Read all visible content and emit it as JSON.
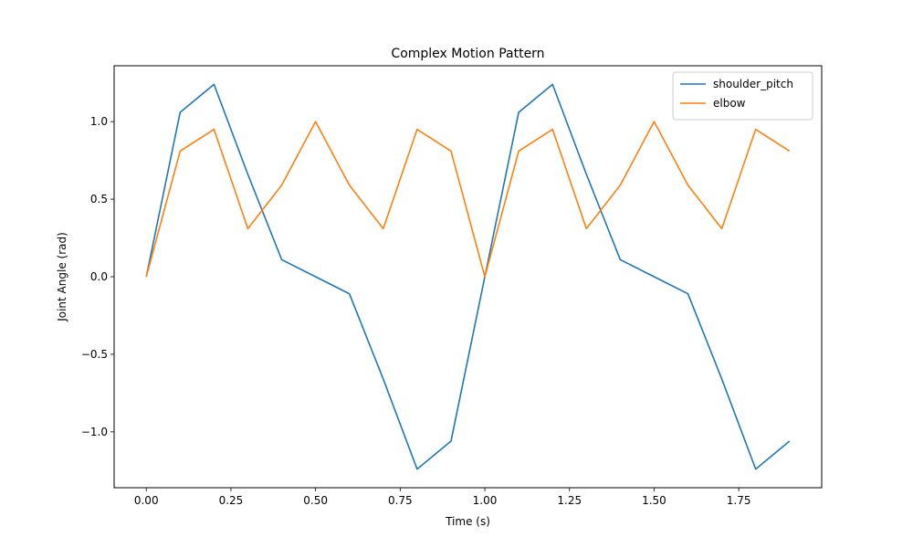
{
  "chart_data": {
    "type": "line",
    "title": "Complex Motion Pattern",
    "xlabel": "Time (s)",
    "ylabel": "Joint Angle (rad)",
    "xlim": [
      -0.095,
      1.995
    ],
    "ylim": [
      -1.36,
      1.36
    ],
    "xticks": [
      0.0,
      0.25,
      0.5,
      0.75,
      1.0,
      1.25,
      1.5,
      1.75
    ],
    "xtick_labels": [
      "0.00",
      "0.25",
      "0.50",
      "0.75",
      "1.00",
      "1.25",
      "1.50",
      "1.75"
    ],
    "yticks": [
      -1.0,
      -0.5,
      0.0,
      0.5,
      1.0
    ],
    "ytick_labels": [
      "−1.0",
      "−0.5",
      "0.0",
      "0.5",
      "1.0"
    ],
    "grid": false,
    "legend_position": "top-right",
    "x": [
      0.0,
      0.1,
      0.2,
      0.3,
      0.4,
      0.5,
      0.6,
      0.7,
      0.8,
      0.9,
      1.0,
      1.1,
      1.2,
      1.3,
      1.4,
      1.5,
      1.6,
      1.7,
      1.8,
      1.9
    ],
    "series": [
      {
        "name": "shoulder_pitch",
        "color": "#1f77b4",
        "values": [
          0.0,
          1.06,
          1.24,
          0.66,
          0.11,
          0.0,
          -0.11,
          -0.66,
          -1.24,
          -1.06,
          0.0,
          1.06,
          1.24,
          0.66,
          0.11,
          0.0,
          -0.11,
          -0.66,
          -1.24,
          -1.06
        ]
      },
      {
        "name": "elbow",
        "color": "#ff7f0e",
        "values": [
          0.0,
          0.81,
          0.95,
          0.31,
          0.59,
          1.0,
          0.59,
          0.31,
          0.95,
          0.81,
          0.0,
          0.81,
          0.95,
          0.31,
          0.59,
          1.0,
          0.59,
          0.31,
          0.95,
          0.81
        ]
      }
    ]
  }
}
